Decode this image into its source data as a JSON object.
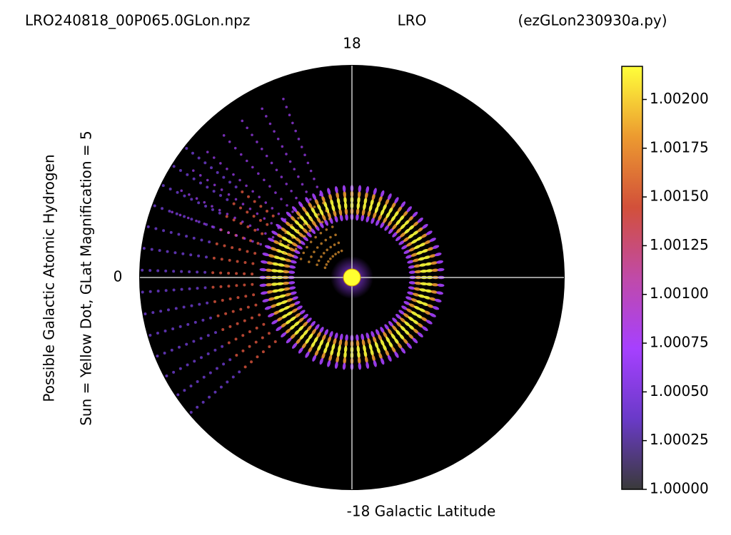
{
  "chart_data": {
    "type": "polar",
    "title_left": "LRO240818_00P065.0GLon.npz",
    "title_center": "LRO",
    "title_right": "(ezGLon230930a.py)",
    "top_label": "18",
    "left_label": "0",
    "bottom_label": "-18 Galactic Latitude",
    "ylabel_1": "Possible Galactic Atomic Hydrogen",
    "ylabel_2": "Sun = Yellow Dot, GLat Magnification = 5",
    "colormap": [
      "#3a3a3a",
      "#6a3ac8",
      "#a640ff",
      "#c04aa8",
      "#d2503a",
      "#ec9a30",
      "#ffff3a"
    ],
    "clim": [
      1.0,
      1.00217
    ],
    "cticks": [
      {
        "value": 1.0,
        "label": "1.00000"
      },
      {
        "value": 1.00025,
        "label": "1.00025"
      },
      {
        "value": 1.0005,
        "label": "1.00050"
      },
      {
        "value": 1.00075,
        "label": "1.00075"
      },
      {
        "value": 1.001,
        "label": "1.00100"
      },
      {
        "value": 1.00125,
        "label": "1.00125"
      },
      {
        "value": 1.0015,
        "label": "1.00150"
      },
      {
        "value": 1.00175,
        "label": "1.00175"
      },
      {
        "value": 1.002,
        "label": "1.00200"
      }
    ]
  }
}
